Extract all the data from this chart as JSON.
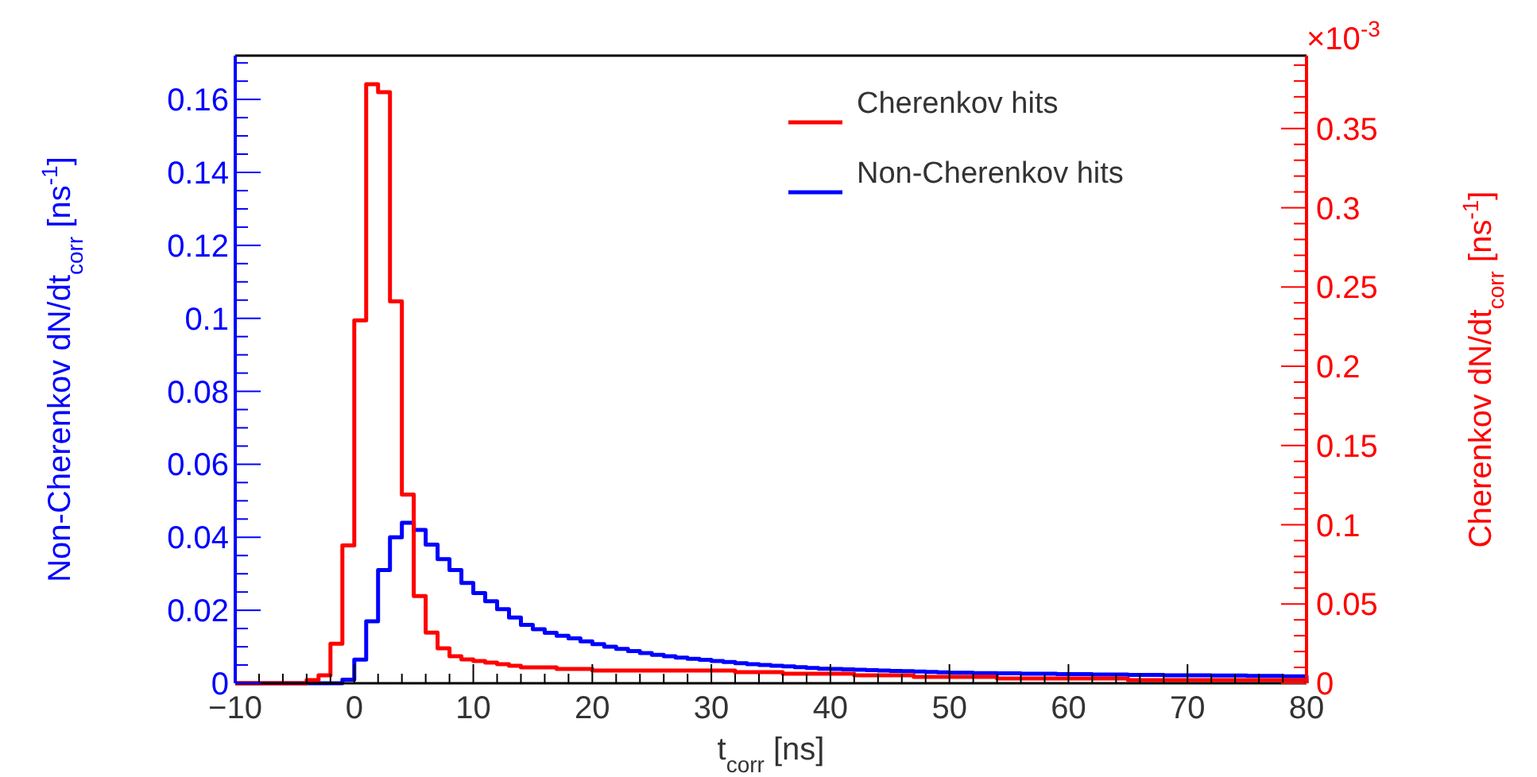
{
  "chart_data": {
    "type": "histogram",
    "xlabel": "t$_{corr}$ [ns]",
    "ylabel": "Non-Cherenkov dN/dt$_{corr}$ [ns$^{-1}$]",
    "y2label": "Cherenkov dN/dt$_{corr}$ [ns$^{-1}$]",
    "annotations": [
      "×10$^{-3}$"
    ],
    "bins": [
      -10,
      -9,
      -8,
      -7,
      -6,
      -5,
      -4,
      -3,
      -2,
      -1,
      0,
      1,
      2,
      3,
      4,
      5,
      6,
      7,
      8,
      9,
      10,
      11,
      12,
      13,
      14,
      15,
      16,
      17,
      18,
      19,
      20,
      21,
      22,
      23,
      24,
      25,
      26,
      27,
      28,
      29,
      30,
      31,
      32,
      33,
      34,
      35,
      36,
      37,
      38,
      39,
      40,
      41,
      42,
      43,
      44,
      45,
      46,
      47,
      48,
      49,
      50,
      51,
      52,
      53,
      54,
      55,
      56,
      57,
      58,
      59,
      60,
      61,
      62,
      63,
      64,
      65,
      66,
      67,
      68,
      69,
      70,
      71,
      72,
      73,
      74,
      75,
      76,
      77,
      78,
      79,
      80
    ],
    "series": [
      {
        "name": "Cherenkov hits",
        "color": "#ff0000",
        "axis": "y2",
        "values": [
          0,
          0,
          0,
          0,
          0,
          0,
          0.002,
          0.005,
          0.025,
          0.087,
          0.229,
          0.378,
          0.373,
          0.241,
          0.119,
          0.055,
          0.032,
          0.022,
          0.017,
          0.015,
          0.014,
          0.013,
          0.012,
          0.011,
          0.01,
          0.01,
          0.01,
          0.009,
          0.009,
          0.009,
          0.008,
          0.008,
          0.008,
          0.008,
          0.008,
          0.008,
          0.008,
          0.008,
          0.008,
          0.008,
          0.008,
          0.008,
          0.007,
          0.007,
          0.007,
          0.007,
          0.006,
          0.006,
          0.006,
          0.006,
          0.006,
          0.006,
          0.005,
          0.005,
          0.005,
          0.005,
          0.005,
          0.004,
          0.004,
          0.004,
          0.004,
          0.004,
          0.004,
          0.004,
          0.003,
          0.003,
          0.003,
          0.003,
          0.003,
          0.003,
          0.003,
          0.003,
          0.003,
          0.003,
          0.003,
          0.002,
          0.002,
          0.002,
          0.002,
          0.002,
          0.002,
          0.002,
          0.002,
          0.002,
          0.002,
          0.002,
          0.002,
          0.002,
          0.002,
          0.002
        ]
      },
      {
        "name": "Non-Cherenkov hits",
        "color": "#0000ff",
        "values": [
          0,
          0,
          0,
          0,
          0,
          0,
          0,
          0,
          0,
          0.001,
          0.0065,
          0.017,
          0.031,
          0.04,
          0.044,
          0.042,
          0.038,
          0.034,
          0.031,
          0.0275,
          0.0247,
          0.0225,
          0.0203,
          0.018,
          0.016,
          0.0148,
          0.0138,
          0.013,
          0.0123,
          0.0115,
          0.0107,
          0.01,
          0.0094,
          0.0088,
          0.0083,
          0.0078,
          0.0074,
          0.007,
          0.0067,
          0.0064,
          0.0061,
          0.0058,
          0.0055,
          0.0052,
          0.005,
          0.0048,
          0.0046,
          0.0044,
          0.0042,
          0.004,
          0.0039,
          0.0038,
          0.0037,
          0.0036,
          0.0035,
          0.0034,
          0.0033,
          0.0032,
          0.0031,
          0.003,
          0.0029,
          0.0029,
          0.0028,
          0.0028,
          0.0027,
          0.0027,
          0.0026,
          0.0026,
          0.0026,
          0.0025,
          0.0025,
          0.0025,
          0.0024,
          0.0024,
          0.0024,
          0.0023,
          0.0023,
          0.0023,
          0.0022,
          0.0022,
          0.0022,
          0.0022,
          0.0021,
          0.0021,
          0.0021,
          0.002,
          0.002,
          0.002,
          0.0019,
          0.0019
        ]
      }
    ],
    "xlim": [
      -10,
      80
    ],
    "xticks": [
      -10,
      0,
      10,
      20,
      30,
      40,
      50,
      60,
      70,
      80
    ],
    "ylim": [
      0,
      0.172
    ],
    "yticks": [
      0,
      0.02,
      0.04,
      0.06,
      0.08,
      0.1,
      0.12,
      0.14,
      0.16
    ],
    "y2lim": [
      0,
      0.396
    ],
    "y2ticks": [
      0,
      0.05,
      0.1,
      0.15,
      0.2,
      0.25,
      0.3,
      0.35
    ],
    "legend": "top right",
    "grid": false
  }
}
